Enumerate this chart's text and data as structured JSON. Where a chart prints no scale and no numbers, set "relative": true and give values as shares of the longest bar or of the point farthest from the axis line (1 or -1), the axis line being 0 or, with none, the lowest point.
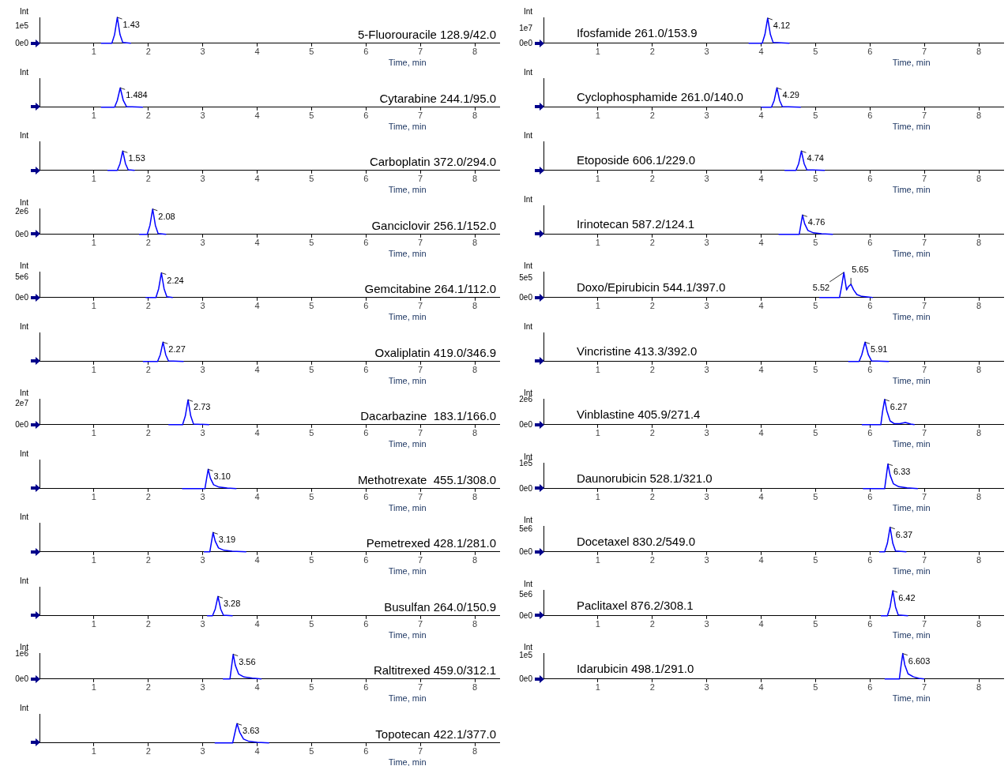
{
  "chart_data": [
    {
      "type": "line",
      "title": "5-Fluorouracile 128.9/42.0",
      "xlabel": "Time, min",
      "ylabel": "Int",
      "color": "#0000ff",
      "marker": "none",
      "xlim": [
        0,
        8.45
      ],
      "xticks": [
        1,
        2,
        3,
        4,
        5,
        6,
        7,
        8
      ],
      "ylim": [
        0,
        150000
      ],
      "yticks": [
        {
          "value": 0,
          "label": "0e0"
        },
        {
          "value": 100000,
          "label": "1e5"
        }
      ],
      "x": [
        1.13,
        1.33,
        1.38,
        1.43,
        1.48,
        1.53,
        1.68
      ],
      "values": [
        0,
        0,
        50000,
        150000,
        50000,
        5000,
        0
      ],
      "annotations": [
        {
          "text": "1.43",
          "x": 1.43,
          "y": 150000
        }
      ]
    },
    {
      "type": "line",
      "title": "Cytarabine 244.1/95.0",
      "xlabel": "Time, min",
      "ylabel": "Int",
      "color": "#0000ff",
      "marker": "none",
      "relative": true,
      "xlim": [
        0,
        8.45
      ],
      "xticks": [
        1,
        2,
        3,
        4,
        5,
        6,
        7,
        8
      ],
      "x": [
        1.13,
        1.38,
        1.43,
        1.484,
        1.54,
        1.6,
        1.9
      ],
      "values": [
        0,
        0,
        0.35,
        1,
        0.35,
        0.03,
        0
      ],
      "annotations": [
        {
          "text": "1.484",
          "x": 1.484,
          "y": 1
        }
      ]
    },
    {
      "type": "line",
      "title": "Carboplatin 372.0/294.0",
      "xlabel": "Time, min",
      "ylabel": "Int",
      "color": "#0000ff",
      "marker": "none",
      "relative": true,
      "xlim": [
        0,
        8.45
      ],
      "xticks": [
        1,
        2,
        3,
        4,
        5,
        6,
        7,
        8
      ],
      "x": [
        1.25,
        1.43,
        1.48,
        1.53,
        1.58,
        1.63,
        1.75
      ],
      "values": [
        0,
        0,
        0.35,
        1,
        0.35,
        0.03,
        0
      ],
      "annotations": [
        {
          "text": "1.53",
          "x": 1.53,
          "y": 1
        }
      ]
    },
    {
      "type": "line",
      "title": "Ganciclovir 256.1/152.0",
      "xlabel": "Time, min",
      "ylabel": "Int",
      "color": "#0000ff",
      "marker": "none",
      "xlim": [
        0,
        8.45
      ],
      "xticks": [
        1,
        2,
        3,
        4,
        5,
        6,
        7,
        8
      ],
      "ylim": [
        0,
        2300000
      ],
      "yticks": [
        {
          "value": 0,
          "label": "0e0"
        },
        {
          "value": 2000000,
          "label": "2e6"
        }
      ],
      "x": [
        1.83,
        1.98,
        2.03,
        2.08,
        2.13,
        2.18,
        2.33
      ],
      "values": [
        0,
        0,
        800000,
        2250000,
        800000,
        70000,
        0
      ],
      "annotations": [
        {
          "text": "2.08",
          "x": 2.08,
          "y": 2250000
        }
      ]
    },
    {
      "type": "line",
      "title": "Gemcitabine 264.1/112.0",
      "xlabel": "Time, min",
      "ylabel": "Int",
      "color": "#0000ff",
      "marker": "none",
      "xlim": [
        0,
        8.45
      ],
      "xticks": [
        1,
        2,
        3,
        4,
        5,
        6,
        7,
        8
      ],
      "ylim": [
        0,
        6500000
      ],
      "yticks": [
        {
          "value": 0,
          "label": "0e0"
        },
        {
          "value": 5000000,
          "label": "5e6"
        }
      ],
      "x": [
        1.95,
        2.14,
        2.19,
        2.24,
        2.29,
        2.34,
        2.45
      ],
      "values": [
        0,
        0,
        2200000,
        6200000,
        2200000,
        200000,
        0
      ],
      "annotations": [
        {
          "text": "2.24",
          "x": 2.24,
          "y": 6200000
        }
      ]
    },
    {
      "type": "line",
      "title": "Oxaliplatin 419.0/346.9",
      "xlabel": "Time, min",
      "ylabel": "Int",
      "color": "#0000ff",
      "marker": "none",
      "relative": true,
      "xlim": [
        0,
        8.45
      ],
      "xticks": [
        1,
        2,
        3,
        4,
        5,
        6,
        7,
        8
      ],
      "x": [
        1.9,
        2.17,
        2.22,
        2.27,
        2.32,
        2.37,
        2.65
      ],
      "values": [
        0,
        0,
        0.35,
        1,
        0.35,
        0.03,
        0
      ],
      "annotations": [
        {
          "text": "2.27",
          "x": 2.27,
          "y": 1
        }
      ]
    },
    {
      "type": "line",
      "title": "Dacarbazine  183.1/166.0",
      "xlabel": "Time, min",
      "ylabel": "Int",
      "color": "#0000ff",
      "marker": "none",
      "xlim": [
        0,
        8.45
      ],
      "xticks": [
        1,
        2,
        3,
        4,
        5,
        6,
        7,
        8
      ],
      "ylim": [
        0,
        25000000
      ],
      "yticks": [
        {
          "value": 0,
          "label": "0e0"
        },
        {
          "value": 20000000,
          "label": "2e7"
        }
      ],
      "x": [
        2.37,
        2.63,
        2.68,
        2.73,
        2.78,
        2.83,
        3.12
      ],
      "values": [
        0,
        0,
        8400000,
        24000000,
        8400000,
        700000,
        0
      ],
      "annotations": [
        {
          "text": "2.73",
          "x": 2.73,
          "y": 24000000
        }
      ]
    },
    {
      "type": "line",
      "title": "Methotrexate  455.1/308.0",
      "xlabel": "Time, min",
      "ylabel": "Int",
      "color": "#0000ff",
      "marker": "none",
      "relative": true,
      "xlim": [
        0,
        8.45
      ],
      "xticks": [
        1,
        2,
        3,
        4,
        5,
        6,
        7,
        8
      ],
      "x": [
        2.62,
        3.04,
        3.07,
        3.1,
        3.14,
        3.2,
        3.3,
        3.45,
        3.62
      ],
      "values": [
        0,
        0,
        0.5,
        1,
        0.55,
        0.2,
        0.08,
        0.03,
        0
      ],
      "annotations": [
        {
          "text": "3.10",
          "x": 3.1,
          "y": 1
        }
      ]
    },
    {
      "type": "line",
      "title": "Pemetrexed 428.1/281.0",
      "xlabel": "Time, min",
      "ylabel": "Int",
      "color": "#0000ff",
      "marker": "none",
      "relative": true,
      "xlim": [
        0,
        8.45
      ],
      "xticks": [
        1,
        2,
        3,
        4,
        5,
        6,
        7,
        8
      ],
      "x": [
        3.02,
        3.13,
        3.16,
        3.19,
        3.23,
        3.29,
        3.39,
        3.54,
        3.8
      ],
      "values": [
        0,
        0,
        0.5,
        1,
        0.55,
        0.2,
        0.08,
        0.03,
        0
      ],
      "annotations": [
        {
          "text": "3.19",
          "x": 3.19,
          "y": 1
        }
      ]
    },
    {
      "type": "line",
      "title": "Busulfan 264.0/150.9",
      "xlabel": "Time, min",
      "ylabel": "Int",
      "color": "#0000ff",
      "marker": "none",
      "relative": true,
      "xlim": [
        0,
        8.45
      ],
      "xticks": [
        1,
        2,
        3,
        4,
        5,
        6,
        7,
        8
      ],
      "x": [
        3.08,
        3.18,
        3.23,
        3.28,
        3.33,
        3.38,
        3.55
      ],
      "values": [
        0,
        0,
        0.35,
        1,
        0.35,
        0.03,
        0
      ],
      "annotations": [
        {
          "text": "3.28",
          "x": 3.28,
          "y": 1
        }
      ]
    },
    {
      "type": "line",
      "title": "Raltitrexed 459.0/312.1",
      "xlabel": "Time, min",
      "ylabel": "Int",
      "color": "#0000ff",
      "marker": "none",
      "xlim": [
        0,
        8.45
      ],
      "xticks": [
        1,
        2,
        3,
        4,
        5,
        6,
        7,
        8
      ],
      "ylim": [
        0,
        1050000
      ],
      "yticks": [
        {
          "value": 0,
          "label": "0e0"
        },
        {
          "value": 1000000,
          "label": "1e6"
        }
      ],
      "x": [
        3.37,
        3.5,
        3.53,
        3.56,
        3.6,
        3.66,
        3.76,
        3.91,
        4.08
      ],
      "values": [
        0,
        0,
        500000,
        1000000,
        550000,
        200000,
        80000,
        30000,
        0
      ],
      "annotations": [
        {
          "text": "3.56",
          "x": 3.56,
          "y": 1000000
        }
      ]
    },
    {
      "type": "line",
      "title": "Topotecan 422.1/377.0",
      "xlabel": "Time, min",
      "ylabel": "Int",
      "color": "#0000ff",
      "marker": "none",
      "relative": true,
      "xlim": [
        0,
        8.45
      ],
      "xticks": [
        1,
        2,
        3,
        4,
        5,
        6,
        7,
        8
      ],
      "x": [
        3.22,
        3.55,
        3.59,
        3.63,
        3.68,
        3.75,
        3.85,
        4.0,
        4.22
      ],
      "values": [
        0,
        0,
        0.5,
        1,
        0.55,
        0.2,
        0.08,
        0.03,
        0
      ],
      "annotations": [
        {
          "text": "3.63",
          "x": 3.63,
          "y": 1
        }
      ]
    },
    {
      "type": "line",
      "title": "Ifosfamide 261.0/153.9",
      "xlabel": "Time, min",
      "ylabel": "Int",
      "color": "#0000ff",
      "marker": "none",
      "xlim": [
        0,
        8.45
      ],
      "xticks": [
        1,
        2,
        3,
        4,
        5,
        6,
        7,
        8
      ],
      "ylim": [
        0,
        17500000
      ],
      "yticks": [
        {
          "value": 0,
          "label": "0e0"
        },
        {
          "value": 10000000,
          "label": "1e7"
        }
      ],
      "x": [
        3.77,
        4.02,
        4.07,
        4.12,
        4.17,
        4.22,
        4.52
      ],
      "values": [
        0,
        0,
        6000000,
        17000000,
        6000000,
        500000,
        0
      ],
      "annotations": [
        {
          "text": "4.12",
          "x": 4.12,
          "y": 17000000
        }
      ]
    },
    {
      "type": "line",
      "title": "Cyclophosphamide 261.0/140.0",
      "xlabel": "Time, min",
      "ylabel": "Int",
      "color": "#0000ff",
      "marker": "none",
      "relative": true,
      "xlim": [
        0,
        8.45
      ],
      "xticks": [
        1,
        2,
        3,
        4,
        5,
        6,
        7,
        8
      ],
      "x": [
        4.0,
        4.19,
        4.24,
        4.29,
        4.34,
        4.39,
        4.73
      ],
      "values": [
        0,
        0,
        0.35,
        1,
        0.35,
        0.03,
        0
      ],
      "annotations": [
        {
          "text": "4.29",
          "x": 4.29,
          "y": 1
        }
      ]
    },
    {
      "type": "line",
      "title": "Etoposide 606.1/229.0",
      "xlabel": "Time, min",
      "ylabel": "Int",
      "color": "#0000ff",
      "marker": "none",
      "relative": true,
      "xlim": [
        0,
        8.45
      ],
      "xticks": [
        1,
        2,
        3,
        4,
        5,
        6,
        7,
        8
      ],
      "x": [
        4.43,
        4.64,
        4.69,
        4.74,
        4.79,
        4.84,
        5.17
      ],
      "values": [
        0,
        0,
        0.35,
        1,
        0.35,
        0.03,
        0
      ],
      "annotations": [
        {
          "text": "4.74",
          "x": 4.74,
          "y": 1
        }
      ]
    },
    {
      "type": "line",
      "title": "Irinotecan 587.2/124.1",
      "xlabel": "Time, min",
      "ylabel": "Int",
      "color": "#0000ff",
      "marker": "none",
      "relative": true,
      "xlim": [
        0,
        8.45
      ],
      "xticks": [
        1,
        2,
        3,
        4,
        5,
        6,
        7,
        8
      ],
      "x": [
        4.32,
        4.7,
        4.73,
        4.76,
        4.8,
        4.86,
        4.96,
        5.11,
        5.32
      ],
      "values": [
        0,
        0,
        0.5,
        1,
        0.55,
        0.2,
        0.08,
        0.03,
        0
      ],
      "annotations": [
        {
          "text": "4.76",
          "x": 4.76,
          "y": 1
        }
      ]
    },
    {
      "type": "line",
      "title": "Doxo/Epirubicin 544.1/397.0",
      "xlabel": "Time, min",
      "ylabel": "Int",
      "color": "#0000ff",
      "marker": "none",
      "xlim": [
        0,
        8.45
      ],
      "xticks": [
        1,
        2,
        3,
        4,
        5,
        6,
        7,
        8
      ],
      "ylim": [
        0,
        680000
      ],
      "yticks": [
        {
          "value": 0,
          "label": "0e0"
        },
        {
          "value": 500000,
          "label": "5e5"
        }
      ],
      "x": [
        5.07,
        5.44,
        5.48,
        5.52,
        5.57,
        5.6,
        5.65,
        5.7,
        5.76,
        5.85,
        6.05
      ],
      "values": [
        0,
        0,
        300000,
        660000,
        200000,
        280000,
        350000,
        200000,
        80000,
        30000,
        0
      ],
      "annotations": [
        {
          "text": "5.52",
          "x": 5.52,
          "y": 660000
        },
        {
          "text": "5.65",
          "x": 5.65,
          "y": 350000
        }
      ]
    },
    {
      "type": "line",
      "title": "Vincristine 413.3/392.0",
      "xlabel": "Time, min",
      "ylabel": "Int",
      "color": "#0000ff",
      "marker": "none",
      "relative": true,
      "xlim": [
        0,
        8.45
      ],
      "xticks": [
        1,
        2,
        3,
        4,
        5,
        6,
        7,
        8
      ],
      "x": [
        5.6,
        5.8,
        5.85,
        5.91,
        5.97,
        6.03,
        6.35
      ],
      "values": [
        0,
        0,
        0.35,
        1,
        0.35,
        0.03,
        0
      ],
      "annotations": [
        {
          "text": "5.91",
          "x": 5.91,
          "y": 1
        }
      ]
    },
    {
      "type": "line",
      "title": "Vinblastine 405.9/271.4",
      "xlabel": "Time, min",
      "ylabel": "Int",
      "color": "#0000ff",
      "marker": "none",
      "xlim": [
        0,
        8.45
      ],
      "xticks": [
        1,
        2,
        3,
        4,
        5,
        6,
        7,
        8
      ],
      "ylim": [
        0,
        2050000
      ],
      "yticks": [
        {
          "value": 0,
          "label": "0e0"
        },
        {
          "value": 2000000,
          "label": "2e6"
        }
      ],
      "x": [
        5.85,
        6.2,
        6.23,
        6.27,
        6.31,
        6.37,
        6.45,
        6.55,
        6.65,
        6.75,
        6.82
      ],
      "values": [
        0,
        0,
        1000000,
        2000000,
        1100000,
        300000,
        80000,
        80000,
        180000,
        50000,
        0
      ],
      "annotations": [
        {
          "text": "6.27",
          "x": 6.27,
          "y": 2000000
        }
      ]
    },
    {
      "type": "line",
      "title": "Daunorubicin 528.1/321.0",
      "xlabel": "Time, min",
      "ylabel": "Int",
      "color": "#0000ff",
      "marker": "none",
      "xlim": [
        0,
        8.45
      ],
      "xticks": [
        1,
        2,
        3,
        4,
        5,
        6,
        7,
        8
      ],
      "ylim": [
        0,
        105000
      ],
      "yticks": [
        {
          "value": 0,
          "label": "0e0"
        },
        {
          "value": 100000,
          "label": "1e5"
        }
      ],
      "x": [
        5.87,
        6.27,
        6.3,
        6.33,
        6.37,
        6.43,
        6.53,
        6.68,
        6.88
      ],
      "values": [
        0,
        0,
        50000,
        100000,
        55000,
        20000,
        8000,
        3000,
        0
      ],
      "annotations": [
        {
          "text": "6.33",
          "x": 6.33,
          "y": 100000
        }
      ]
    },
    {
      "type": "line",
      "title": "Docetaxel 830.2/549.0",
      "xlabel": "Time, min",
      "ylabel": "Int",
      "color": "#0000ff",
      "marker": "none",
      "xlim": [
        0,
        8.45
      ],
      "xticks": [
        1,
        2,
        3,
        4,
        5,
        6,
        7,
        8
      ],
      "ylim": [
        0,
        5800000
      ],
      "yticks": [
        {
          "value": 0,
          "label": "0e0"
        },
        {
          "value": 5000000,
          "label": "5e6"
        }
      ],
      "x": [
        6.17,
        6.27,
        6.32,
        6.37,
        6.42,
        6.47,
        6.67
      ],
      "values": [
        0,
        0,
        1900000,
        5500000,
        1900000,
        200000,
        0
      ],
      "annotations": [
        {
          "text": "6.37",
          "x": 6.37,
          "y": 5500000
        }
      ]
    },
    {
      "type": "line",
      "title": "Paclitaxel 876.2/308.1",
      "xlabel": "Time, min",
      "ylabel": "Int",
      "color": "#0000ff",
      "marker": "none",
      "xlim": [
        0,
        8.45
      ],
      "xticks": [
        1,
        2,
        3,
        4,
        5,
        6,
        7,
        8
      ],
      "ylim": [
        0,
        6200000
      ],
      "yticks": [
        {
          "value": 0,
          "label": "0e0"
        },
        {
          "value": 5000000,
          "label": "5e6"
        }
      ],
      "x": [
        6.2,
        6.32,
        6.37,
        6.42,
        6.47,
        6.52,
        6.7
      ],
      "values": [
        0,
        0,
        2100000,
        6000000,
        2100000,
        200000,
        0
      ],
      "annotations": [
        {
          "text": "6.42",
          "x": 6.42,
          "y": 6000000
        }
      ]
    },
    {
      "type": "line",
      "title": "Idarubicin 498.1/291.0",
      "xlabel": "Time, min",
      "ylabel": "Int",
      "color": "#0000ff",
      "marker": "none",
      "xlim": [
        0,
        8.45
      ],
      "xticks": [
        1,
        2,
        3,
        4,
        5,
        6,
        7,
        8
      ],
      "ylim": [
        0,
        110000
      ],
      "yticks": [
        {
          "value": 0,
          "label": "0e0"
        },
        {
          "value": 100000,
          "label": "1e5"
        }
      ],
      "x": [
        6.27,
        6.54,
        6.57,
        6.603,
        6.64,
        6.7,
        6.8,
        6.9,
        7.0
      ],
      "values": [
        0,
        0,
        54000,
        108000,
        60000,
        22000,
        9000,
        3000,
        0
      ],
      "annotations": [
        {
          "text": "6.603",
          "x": 6.603,
          "y": 108000
        }
      ]
    }
  ]
}
